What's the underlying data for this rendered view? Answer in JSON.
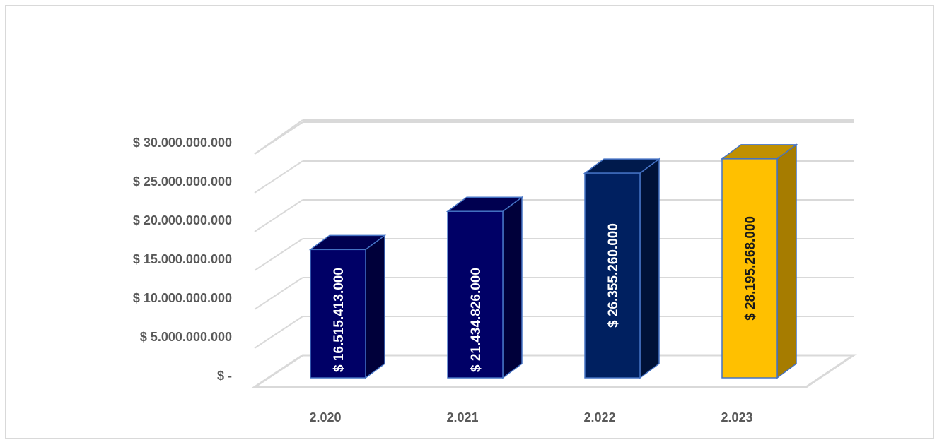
{
  "chart_data": {
    "type": "bar",
    "style": "3d-column",
    "categories": [
      "2.020",
      "2.021",
      "2.022",
      "2.023"
    ],
    "values": [
      16515413000,
      21434826000,
      26355260000,
      28195268000
    ],
    "data_labels": [
      "$ 16.515.413.000",
      "$ 21.434.826.000",
      "$ 26.355.260.000",
      "$ 28.195.268.000"
    ],
    "y_ticks": [
      {
        "value": 0,
        "label": "$ -"
      },
      {
        "value": 5000000000,
        "label": "$ 5.000.000.000"
      },
      {
        "value": 10000000000,
        "label": "$ 10.000.000.000"
      },
      {
        "value": 15000000000,
        "label": "$ 15.000.000.000"
      },
      {
        "value": 20000000000,
        "label": "$ 20.000.000.000"
      },
      {
        "value": 25000000000,
        "label": "$ 25.000.000.000"
      },
      {
        "value": 30000000000,
        "label": "$ 30.000.000.000"
      }
    ],
    "ylim": [
      0,
      30000000000
    ],
    "grid": true,
    "colors": {
      "bars": [
        "#000066",
        "#000066",
        "#002060",
        "#FFC000"
      ],
      "sides": [
        "#00003a",
        "#00003a",
        "#001238",
        "#A67C00"
      ],
      "tops": [
        "#000050",
        "#000050",
        "#001a4c",
        "#C09000"
      ],
      "edge": "#4472C4",
      "label_light": "#ffffff",
      "label_dark": "#1a1a1a",
      "grid": "#d9d9d9",
      "axis_text": "#595959"
    }
  }
}
